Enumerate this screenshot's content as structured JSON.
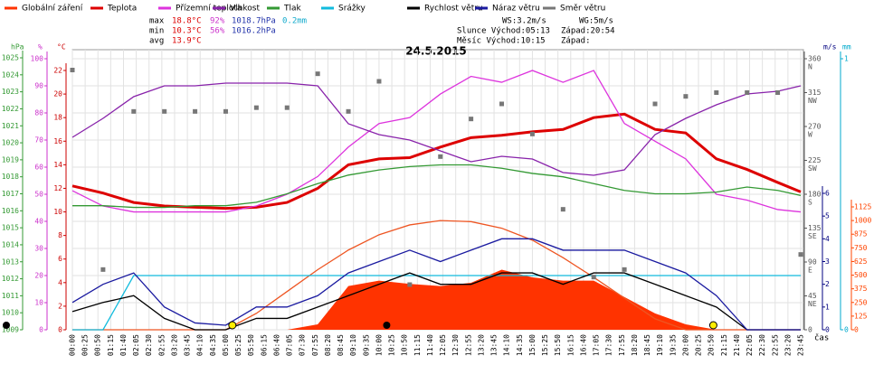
{
  "chart_data": {
    "type": "line",
    "title": "24.5.2015",
    "x_label": "čas",
    "x": [
      "00:00",
      "01:00",
      "02:00",
      "03:00",
      "04:00",
      "05:00",
      "06:00",
      "07:00",
      "08:00",
      "09:00",
      "10:00",
      "11:00",
      "12:00",
      "13:00",
      "14:00",
      "15:00",
      "16:00",
      "17:00",
      "18:00",
      "19:00",
      "20:00",
      "21:00",
      "22:00",
      "23:00",
      "23:45"
    ],
    "xticks": [
      "00:00",
      "00:25",
      "00:50",
      "01:15",
      "01:40",
      "02:05",
      "02:30",
      "02:55",
      "03:20",
      "03:45",
      "04:10",
      "04:35",
      "05:00",
      "05:25",
      "05:50",
      "06:15",
      "06:40",
      "07:05",
      "07:30",
      "07:55",
      "08:20",
      "08:45",
      "09:10",
      "09:35",
      "10:00",
      "10:25",
      "10:50",
      "11:15",
      "11:40",
      "12:05",
      "12:30",
      "12:55",
      "13:20",
      "13:45",
      "14:10",
      "14:35",
      "15:00",
      "15:25",
      "15:50",
      "16:15",
      "16:40",
      "17:05",
      "17:30",
      "17:55",
      "18:20",
      "18:45",
      "19:10",
      "19:35",
      "20:00",
      "20:25",
      "20:50",
      "21:15",
      "21:40",
      "22:05",
      "22:30",
      "22:55",
      "23:20",
      "23:45"
    ],
    "axes": {
      "hpa": {
        "label": "hPa",
        "color": "#339933",
        "lim": [
          1009,
          1025
        ],
        "ticks": [
          1009,
          1010,
          1011,
          1012,
          1013,
          1014,
          1015,
          1016,
          1017,
          1018,
          1019,
          1020,
          1021,
          1022,
          1023,
          1024,
          1025
        ]
      },
      "pct": {
        "label": "%",
        "color": "#cc33cc",
        "lim": [
          0,
          100
        ],
        "ticks": [
          0,
          10,
          20,
          30,
          40,
          50,
          60,
          70,
          80,
          90,
          100
        ]
      },
      "temp": {
        "label": "°C",
        "color": "#cc0000",
        "lim": [
          0,
          22
        ],
        "ticks": [
          0,
          2,
          4,
          6,
          8,
          10,
          12,
          14,
          16,
          18,
          20,
          22
        ]
      },
      "dir": {
        "label": "",
        "color": "#555555",
        "lim": [
          0,
          360
        ],
        "ticks": [
          0,
          45,
          90,
          135,
          180,
          225,
          270,
          315,
          360
        ],
        "tick_names": [
          null,
          "NE",
          "E",
          "SE",
          "S",
          "SW",
          "W",
          "NW",
          "N"
        ]
      },
      "ms": {
        "label": "m/s",
        "color": "#000080",
        "lim": [
          0,
          6
        ],
        "ticks": [
          0,
          1,
          2,
          3,
          4,
          5,
          6
        ]
      },
      "mm": {
        "label": "mm",
        "color": "#00aacc",
        "lim": [
          0,
          1
        ],
        "ticks": [
          0,
          1
        ]
      },
      "solar": {
        "label": "",
        "color": "#ff4400",
        "lim": [
          0,
          1125
        ],
        "ticks": [
          0,
          125,
          250,
          375,
          500,
          625,
          750,
          875,
          1000,
          1125
        ]
      }
    },
    "series": [
      {
        "name": "Globální záření",
        "color": "#ff3300",
        "axis": "solar",
        "style": "area",
        "values": [
          0,
          0,
          0,
          0,
          0,
          0,
          0,
          0,
          50,
          400,
          450,
          420,
          400,
          430,
          550,
          480,
          450,
          450,
          300,
          150,
          50,
          0,
          0,
          0,
          0
        ]
      },
      {
        "color": "#ee5522",
        "axis": "solar",
        "style": "line",
        "values": [
          0,
          0,
          0,
          0,
          0,
          0,
          150,
          350,
          550,
          730,
          870,
          960,
          1000,
          990,
          930,
          820,
          660,
          480,
          290,
          100,
          0,
          0,
          0,
          0,
          0
        ]
      },
      {
        "name": "Teplota",
        "color": "#dd0000",
        "axis": "temp",
        "style": "bold",
        "values": [
          12.2,
          11.6,
          10.8,
          10.5,
          10.4,
          10.3,
          10.4,
          10.8,
          12,
          14,
          14.5,
          14.6,
          15.5,
          16.3,
          16.5,
          16.8,
          17,
          18,
          18.3,
          17,
          16.7,
          14.5,
          13.6,
          12.5,
          11.7
        ]
      },
      {
        "name": "Přízemní teplota",
        "color": "#dd33dd",
        "axis": "temp",
        "style": "line",
        "values": [
          11.8,
          10.5,
          10,
          10,
          10,
          10,
          10.5,
          11.5,
          13,
          15.5,
          17.5,
          18,
          20,
          21.5,
          21,
          22,
          21,
          22,
          17.5,
          16,
          14.5,
          11.5,
          11,
          10.2,
          10
        ]
      },
      {
        "name": "Vlhkost",
        "color": "#8822aa",
        "axis": "pct",
        "style": "line",
        "values": [
          71,
          78,
          86,
          90,
          90,
          91,
          91,
          91,
          90,
          76,
          72,
          70,
          66,
          62,
          64,
          63,
          58,
          57,
          59,
          72,
          78,
          83,
          87,
          88,
          90
        ]
      },
      {
        "name": "Tlak",
        "color": "#339933",
        "axis": "hpa",
        "style": "line",
        "values": [
          1016.3,
          1016.3,
          1016.2,
          1016.2,
          1016.3,
          1016.3,
          1016.5,
          1017,
          1017.6,
          1018.1,
          1018.4,
          1018.6,
          1018.7,
          1018.7,
          1018.5,
          1018.2,
          1018,
          1017.6,
          1017.2,
          1017,
          1017,
          1017.1,
          1017.4,
          1017.2,
          1016.9
        ]
      },
      {
        "name": "Srážky",
        "color": "#11bbdd",
        "axis": "mm",
        "style": "line",
        "values": [
          0,
          0,
          0.2,
          0.2,
          0.2,
          0.2,
          0.2,
          0.2,
          0.2,
          0.2,
          0.2,
          0.2,
          0.2,
          0.2,
          0.2,
          0.2,
          0.2,
          0.2,
          0.2,
          0.2,
          0.2,
          0.2,
          0.2,
          0.2,
          0.2
        ]
      },
      {
        "name": "Rychlost větru",
        "color": "#000000",
        "axis": "ms",
        "style": "line",
        "values": [
          0.8,
          1.2,
          1.5,
          0.5,
          0,
          0,
          0.5,
          0.5,
          1,
          1.5,
          2,
          2.5,
          2,
          2,
          2.5,
          2.5,
          2,
          2.5,
          2.5,
          2,
          1.5,
          1,
          0,
          0,
          0
        ]
      },
      {
        "name": "Náraz větru",
        "color": "#1a1aa0",
        "axis": "ms",
        "style": "line",
        "values": [
          1.2,
          2,
          2.5,
          1,
          0.3,
          0.2,
          1,
          1,
          1.5,
          2.5,
          3,
          3.5,
          3,
          3.5,
          4,
          4,
          3.5,
          3.5,
          3.5,
          3,
          2.5,
          1.5,
          0,
          0,
          0
        ]
      },
      {
        "name": "Směr větru",
        "color": "#777777",
        "axis": "dir",
        "style": "points",
        "values": [
          345,
          80,
          290,
          290,
          290,
          290,
          295,
          295,
          340,
          290,
          330,
          60,
          230,
          280,
          300,
          260,
          160,
          70,
          80,
          300,
          310,
          315,
          315,
          315,
          100
        ]
      }
    ],
    "stats": [
      {
        "label": "max",
        "cells": [
          "18.8°C",
          "92%",
          "1018.7hPa",
          "0.2mm"
        ]
      },
      {
        "label": "min",
        "cells": [
          "10.3°C",
          "56%",
          "1016.2hPa"
        ]
      },
      {
        "label": "avg",
        "cells": [
          "13.9°C"
        ]
      }
    ],
    "info": [
      [
        "WS:3.2m/s",
        "WG:5m/s"
      ],
      [
        "Slunce Východ:05:13",
        "Západ:20:54"
      ],
      [
        "Měsíc Východ:10:15",
        "Západ:"
      ]
    ]
  }
}
